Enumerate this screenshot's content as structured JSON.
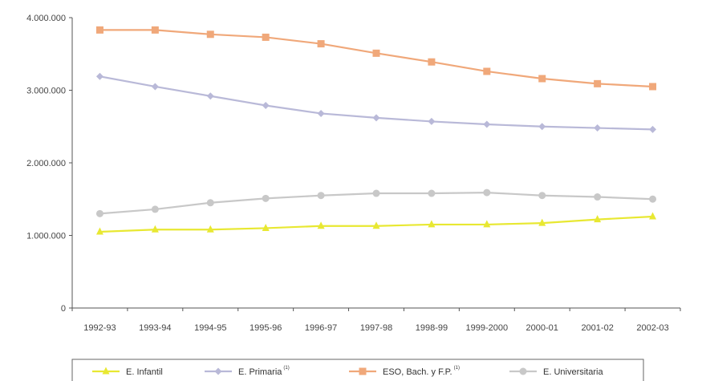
{
  "chart_data": {
    "type": "line",
    "title": "",
    "xlabel": "",
    "ylabel": "",
    "categories": [
      "1992-93",
      "1993-94",
      "1994-95",
      "1995-96",
      "1996-97",
      "1997-98",
      "1998-99",
      "1999-2000",
      "2000-01",
      "2001-02",
      "2002-03"
    ],
    "ylim": [
      0,
      4000000
    ],
    "yticks": [
      0,
      1000000,
      2000000,
      3000000,
      4000000
    ],
    "ytick_labels": [
      "0",
      "1.000.000",
      "2.000.000",
      "3.000.000",
      "4.000.000"
    ],
    "grid": false,
    "legend_position": "bottom",
    "series": [
      {
        "name": "E. Infantil",
        "superscript": "",
        "color": "#e8e832",
        "marker": "triangle",
        "values": [
          1050000,
          1080000,
          1080000,
          1100000,
          1130000,
          1130000,
          1150000,
          1150000,
          1170000,
          1220000,
          1260000
        ]
      },
      {
        "name": "E. Primaria",
        "superscript": "(1)",
        "color": "#b9b9d8",
        "marker": "diamond",
        "values": [
          3190000,
          3050000,
          2920000,
          2790000,
          2680000,
          2620000,
          2570000,
          2530000,
          2500000,
          2480000,
          2460000
        ]
      },
      {
        "name": "ESO, Bach. y F.P.",
        "superscript": "(1)",
        "color": "#f0a87a",
        "marker": "square",
        "values": [
          3830000,
          3830000,
          3770000,
          3730000,
          3640000,
          3510000,
          3390000,
          3260000,
          3160000,
          3090000,
          3050000
        ]
      },
      {
        "name": "E. Universitaria",
        "superscript": "",
        "color": "#c8c8c8",
        "marker": "circle",
        "values": [
          1300000,
          1360000,
          1450000,
          1510000,
          1550000,
          1580000,
          1580000,
          1590000,
          1550000,
          1530000,
          1500000
        ]
      }
    ]
  }
}
